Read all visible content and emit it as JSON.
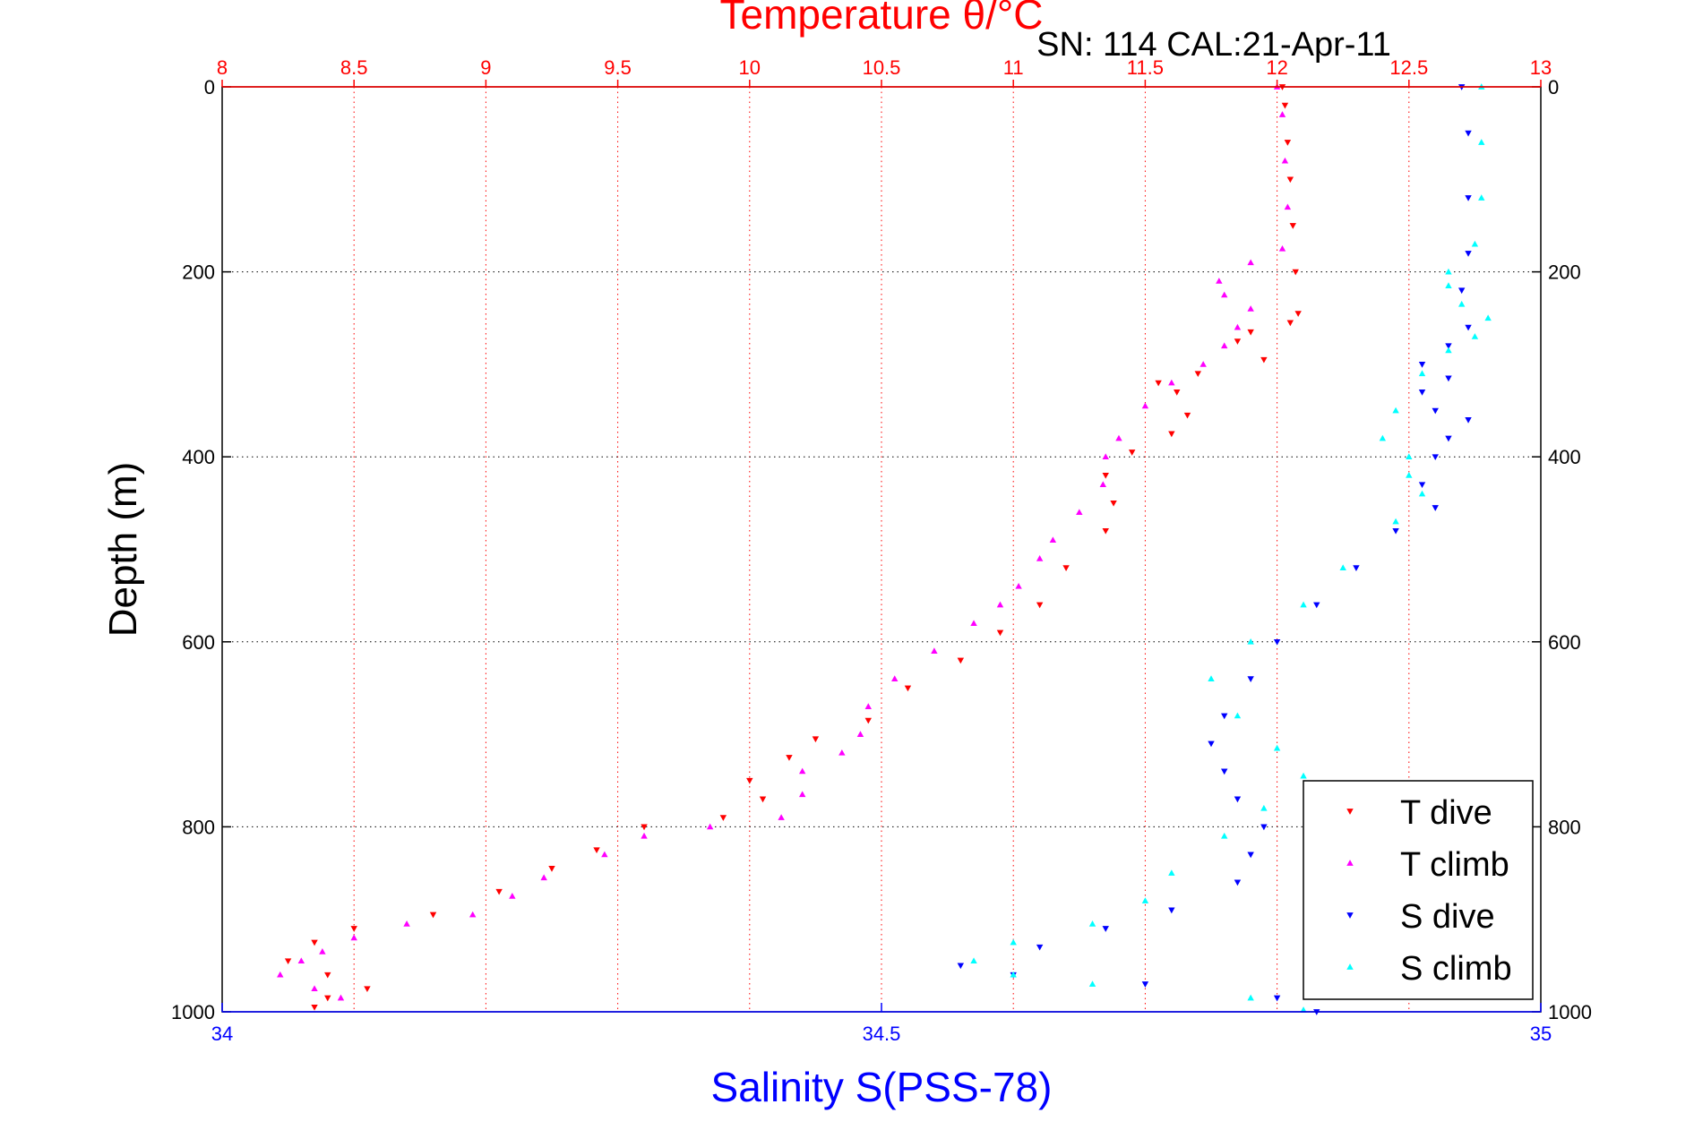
{
  "chart_data": {
    "type": "scatter",
    "annotation": "SN: 114  CAL:21-Apr-11",
    "temperature_axis": {
      "label": "Temperature θ/°C",
      "range": [
        8,
        13
      ],
      "ticks": [
        "8",
        "8.5",
        "9",
        "9.5",
        "10",
        "10.5",
        "11",
        "11.5",
        "12",
        "12.5",
        "13"
      ],
      "color": "#ff0000"
    },
    "salinity_axis": {
      "label": "Salinity S(PSS-78)",
      "range": [
        34,
        35
      ],
      "ticks": [
        "34",
        "34.5",
        "35"
      ],
      "color": "#0000ff"
    },
    "depth_axis": {
      "label": "Depth (m)",
      "range": [
        0,
        1000
      ],
      "reversed": true,
      "ticks": [
        "0",
        "200",
        "400",
        "600",
        "800",
        "1000"
      ]
    },
    "grid": true,
    "legend_position": "bottom-right",
    "series": [
      {
        "name": "T dive",
        "axis": "temperature",
        "color": "#ff0000",
        "marker": "triangle-down",
        "points": [
          [
            12.02,
            0
          ],
          [
            12.03,
            20
          ],
          [
            12.04,
            60
          ],
          [
            12.05,
            100
          ],
          [
            12.06,
            150
          ],
          [
            12.07,
            200
          ],
          [
            12.08,
            245
          ],
          [
            12.05,
            255
          ],
          [
            11.9,
            265
          ],
          [
            11.85,
            275
          ],
          [
            11.95,
            295
          ],
          [
            11.7,
            310
          ],
          [
            11.55,
            320
          ],
          [
            11.62,
            330
          ],
          [
            11.66,
            355
          ],
          [
            11.6,
            375
          ],
          [
            11.45,
            395
          ],
          [
            11.35,
            420
          ],
          [
            11.38,
            450
          ],
          [
            11.35,
            480
          ],
          [
            11.2,
            520
          ],
          [
            11.1,
            560
          ],
          [
            10.95,
            590
          ],
          [
            10.8,
            620
          ],
          [
            10.6,
            650
          ],
          [
            10.45,
            685
          ],
          [
            10.25,
            705
          ],
          [
            10.15,
            725
          ],
          [
            10.0,
            750
          ],
          [
            10.05,
            770
          ],
          [
            9.9,
            790
          ],
          [
            9.6,
            800
          ],
          [
            9.42,
            825
          ],
          [
            9.25,
            845
          ],
          [
            9.05,
            870
          ],
          [
            8.8,
            895
          ],
          [
            8.5,
            910
          ],
          [
            8.35,
            925
          ],
          [
            8.25,
            945
          ],
          [
            8.4,
            960
          ],
          [
            8.55,
            975
          ],
          [
            8.4,
            985
          ],
          [
            8.35,
            995
          ]
        ]
      },
      {
        "name": "T climb",
        "axis": "temperature",
        "color": "#ff00ff",
        "marker": "triangle-up",
        "points": [
          [
            12.0,
            0
          ],
          [
            12.02,
            30
          ],
          [
            12.03,
            80
          ],
          [
            12.04,
            130
          ],
          [
            12.02,
            175
          ],
          [
            11.9,
            190
          ],
          [
            11.78,
            210
          ],
          [
            11.8,
            225
          ],
          [
            11.9,
            240
          ],
          [
            11.85,
            260
          ],
          [
            11.8,
            280
          ],
          [
            11.72,
            300
          ],
          [
            11.6,
            320
          ],
          [
            11.5,
            345
          ],
          [
            11.4,
            380
          ],
          [
            11.35,
            400
          ],
          [
            11.34,
            430
          ],
          [
            11.25,
            460
          ],
          [
            11.15,
            490
          ],
          [
            11.1,
            510
          ],
          [
            11.02,
            540
          ],
          [
            10.95,
            560
          ],
          [
            10.85,
            580
          ],
          [
            10.7,
            610
          ],
          [
            10.55,
            640
          ],
          [
            10.45,
            670
          ],
          [
            10.42,
            700
          ],
          [
            10.35,
            720
          ],
          [
            10.2,
            740
          ],
          [
            10.2,
            765
          ],
          [
            10.12,
            790
          ],
          [
            9.85,
            800
          ],
          [
            9.6,
            810
          ],
          [
            9.45,
            830
          ],
          [
            9.22,
            855
          ],
          [
            9.1,
            875
          ],
          [
            8.95,
            895
          ],
          [
            8.7,
            905
          ],
          [
            8.5,
            920
          ],
          [
            8.38,
            935
          ],
          [
            8.3,
            945
          ],
          [
            8.22,
            960
          ],
          [
            8.35,
            975
          ],
          [
            8.45,
            985
          ]
        ]
      },
      {
        "name": "S dive",
        "axis": "salinity",
        "color": "#0000ff",
        "marker": "triangle-down",
        "points": [
          [
            34.94,
            0
          ],
          [
            34.945,
            50
          ],
          [
            34.945,
            120
          ],
          [
            34.945,
            180
          ],
          [
            34.94,
            220
          ],
          [
            34.945,
            260
          ],
          [
            34.93,
            280
          ],
          [
            34.91,
            300
          ],
          [
            34.93,
            315
          ],
          [
            34.91,
            330
          ],
          [
            34.92,
            350
          ],
          [
            34.945,
            360
          ],
          [
            34.93,
            380
          ],
          [
            34.92,
            400
          ],
          [
            34.91,
            430
          ],
          [
            34.92,
            455
          ],
          [
            34.89,
            480
          ],
          [
            34.86,
            520
          ],
          [
            34.83,
            560
          ],
          [
            34.8,
            600
          ],
          [
            34.78,
            640
          ],
          [
            34.76,
            680
          ],
          [
            34.75,
            710
          ],
          [
            34.76,
            740
          ],
          [
            34.77,
            770
          ],
          [
            34.79,
            800
          ],
          [
            34.78,
            830
          ],
          [
            34.77,
            860
          ],
          [
            34.72,
            890
          ],
          [
            34.67,
            910
          ],
          [
            34.62,
            930
          ],
          [
            34.56,
            950
          ],
          [
            34.6,
            960
          ],
          [
            34.7,
            970
          ],
          [
            34.8,
            985
          ],
          [
            34.83,
            1000
          ]
        ]
      },
      {
        "name": "S climb",
        "axis": "salinity",
        "color": "#00ffff",
        "marker": "triangle-up",
        "points": [
          [
            34.955,
            0
          ],
          [
            34.955,
            60
          ],
          [
            34.955,
            120
          ],
          [
            34.95,
            170
          ],
          [
            34.93,
            200
          ],
          [
            34.93,
            215
          ],
          [
            34.94,
            235
          ],
          [
            34.96,
            250
          ],
          [
            34.95,
            270
          ],
          [
            34.93,
            285
          ],
          [
            34.91,
            310
          ],
          [
            34.89,
            350
          ],
          [
            34.88,
            380
          ],
          [
            34.9,
            400
          ],
          [
            34.9,
            420
          ],
          [
            34.91,
            440
          ],
          [
            34.89,
            470
          ],
          [
            34.85,
            520
          ],
          [
            34.82,
            560
          ],
          [
            34.78,
            600
          ],
          [
            34.75,
            640
          ],
          [
            34.77,
            680
          ],
          [
            34.8,
            715
          ],
          [
            34.82,
            745
          ],
          [
            34.79,
            780
          ],
          [
            34.76,
            810
          ],
          [
            34.72,
            850
          ],
          [
            34.7,
            880
          ],
          [
            34.66,
            905
          ],
          [
            34.6,
            925
          ],
          [
            34.57,
            945
          ],
          [
            34.6,
            960
          ],
          [
            34.66,
            970
          ],
          [
            34.78,
            985
          ],
          [
            34.82,
            998
          ]
        ]
      }
    ]
  }
}
